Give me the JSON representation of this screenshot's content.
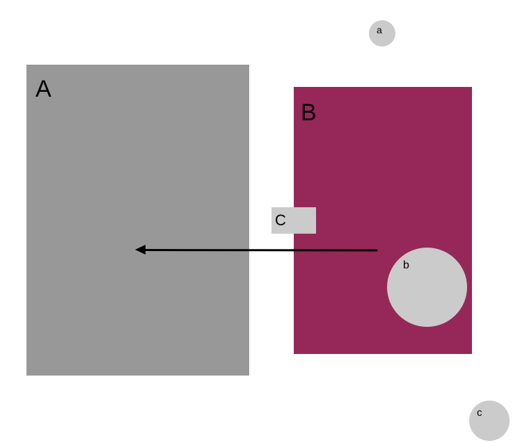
{
  "shapes": {
    "rect_a": {
      "label": "A",
      "color": "#989898"
    },
    "rect_b": {
      "label": "B",
      "color": "#962859"
    },
    "rect_c": {
      "label": "C",
      "color": "#cbcbcb"
    },
    "circle_a": {
      "label": "a",
      "color": "#cbcbcb"
    },
    "circle_b": {
      "label": "b",
      "color": "#cbcbcb"
    },
    "circle_c": {
      "label": "c",
      "color": "#cbcbcb"
    }
  },
  "arrow": {
    "color": "#000000",
    "direction": "left",
    "from": "B",
    "to": "A"
  }
}
